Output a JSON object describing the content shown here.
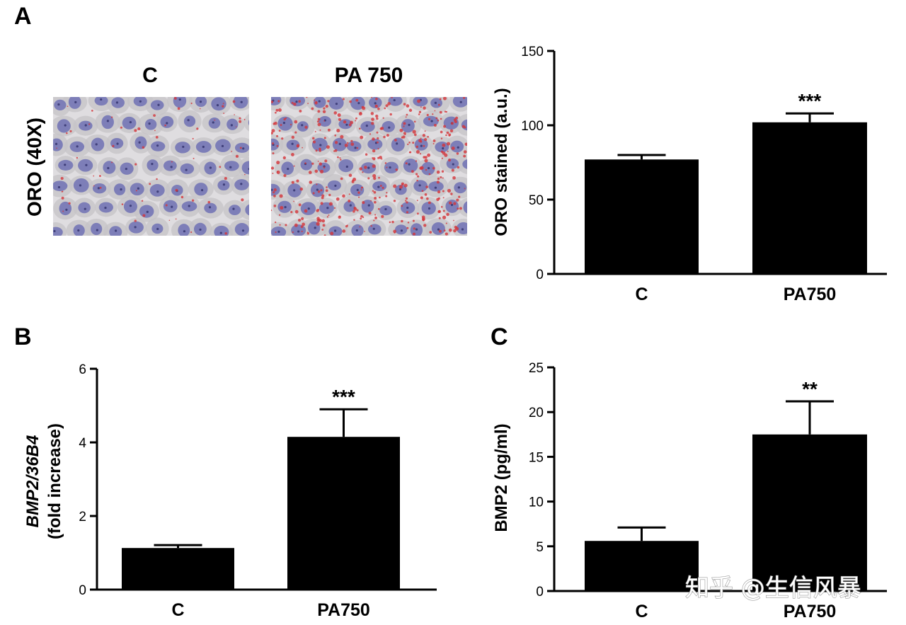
{
  "panels": {
    "a": {
      "letter": "A"
    },
    "b": {
      "letter": "B"
    },
    "c": {
      "letter": "C"
    }
  },
  "micrographs": {
    "side_label": "ORO (40X)",
    "control_title": "C",
    "treated_title": "PA 750",
    "nucleus_color": "#6f71b4",
    "cytoplasm_color": "#c6c3c7",
    "lipid_color": "#d4343a"
  },
  "watermark": "知乎 @生信风暴",
  "bar_color": "#000000",
  "chart_data": [
    {
      "id": "oro",
      "type": "bar",
      "categories": [
        "C",
        "PA750"
      ],
      "values": [
        77,
        102
      ],
      "errors": [
        3,
        6
      ],
      "significance": [
        "",
        "***"
      ],
      "ylabel": "ORO stained (a.u.)",
      "ylim": [
        0,
        150
      ],
      "yticks": [
        0,
        50,
        100,
        150
      ],
      "grid": false
    },
    {
      "id": "bmp2-mrna",
      "type": "bar",
      "categories": [
        "C",
        "PA750"
      ],
      "values": [
        1.13,
        4.15
      ],
      "errors": [
        0.08,
        0.75
      ],
      "significance": [
        "",
        "***"
      ],
      "ylabel_line1": "BMP2/36B4",
      "ylabel_line2": "(fold increase)",
      "ylim": [
        0,
        6
      ],
      "yticks": [
        0,
        2,
        4,
        6
      ],
      "grid": false
    },
    {
      "id": "bmp2-protein",
      "type": "bar",
      "categories": [
        "C",
        "PA750"
      ],
      "values": [
        5.6,
        17.5
      ],
      "errors": [
        1.5,
        3.7
      ],
      "significance": [
        "",
        "**"
      ],
      "ylabel": "BMP2 (pg/ml)",
      "ylim": [
        0,
        25
      ],
      "yticks": [
        0,
        5,
        10,
        15,
        20,
        25
      ],
      "grid": false
    }
  ]
}
